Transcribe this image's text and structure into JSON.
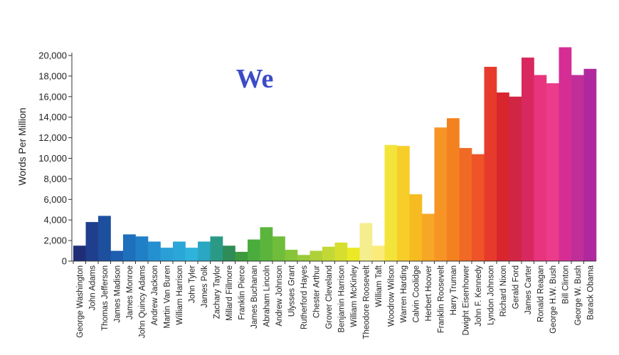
{
  "chart_data": {
    "type": "bar",
    "title": "We",
    "title_color": "#3b4bc8",
    "xlabel": "",
    "ylabel": "Words Per Million",
    "ylim": [
      0,
      20000
    ],
    "yticks": [
      "0",
      "2,000",
      "4,000",
      "6,000",
      "8,000",
      "10,000",
      "12,000",
      "14,000",
      "16,000",
      "18,000",
      "20,000"
    ],
    "grid": false,
    "categories": [
      "George Washington",
      "John Adams",
      "Thomas Jefferson",
      "James Madison",
      "James Monroe",
      "John Quincy Adams",
      "Andrew Jackson",
      "Martin Van Buren",
      "William Harrison",
      "John Tyler",
      "James Polk",
      "Zachary Taylor",
      "Millard Fillmore",
      "Franklin Pierce",
      "James Buchanan",
      "Abraham Lincoln",
      "Andrew Johnson",
      "Ulysses Grant",
      "Rutherford Hayes",
      "Chester Arthur",
      "Grover Cleveland",
      "Benjamin Harrison",
      "William McKinley",
      "Theodore Roosevelt",
      "William Taft",
      "Woodrow Wilson",
      "Warren Harding",
      "Calvin Coolidge",
      "Herbert Hoover",
      "Franklin Roosevelt",
      "Harry Truman",
      "Dwight Eisenhower",
      "John F. Kennedy",
      "Lyndon Johnson",
      "Richard Nixon",
      "Gerald Ford",
      "James Carter",
      "Ronald Reagan",
      "George H.W. Bush",
      "Bill Clinton",
      "George W. Bush",
      "Barack Obama"
    ],
    "values": [
      1500,
      3800,
      4400,
      1000,
      2600,
      2400,
      1900,
      1300,
      1900,
      1300,
      1900,
      2400,
      1500,
      900,
      2100,
      3300,
      2400,
      1100,
      600,
      1000,
      1400,
      1800,
      1300,
      3700,
      1500,
      11300,
      11200,
      6500,
      4600,
      13000,
      13900,
      11000,
      10400,
      18900,
      16400,
      16000,
      19800,
      18100,
      17300,
      20800,
      18100,
      18700
    ],
    "colors": [
      "#1f2d78",
      "#1f3f8e",
      "#1e4f9e",
      "#1e5eaf",
      "#1e6fbc",
      "#2080c6",
      "#2490cf",
      "#2a9ed6",
      "#2aa7d8",
      "#2fb3dc",
      "#2aa7c2",
      "#2a9a86",
      "#2f8c56",
      "#3d9a3e",
      "#4aac3c",
      "#5bb53d",
      "#6fbd3b",
      "#86c43a",
      "#99ca3a",
      "#aed13a",
      "#c3d836",
      "#d7df2e",
      "#ebe925",
      "#f4ee8e",
      "#fbeb7a",
      "#f3e43c",
      "#f7cd2a",
      "#f7bb22",
      "#f6a725",
      "#f79426",
      "#f4811f",
      "#f06a25",
      "#ee5428",
      "#e63b2c",
      "#d9252e",
      "#d02644",
      "#d9285f",
      "#e8347e",
      "#ea3c8a",
      "#d62d94",
      "#c02f98",
      "#b0289e",
      "#9c2c9a",
      "#862ca0",
      "#6a2b96",
      "#5a2b90",
      "#1f2d6e"
    ]
  }
}
